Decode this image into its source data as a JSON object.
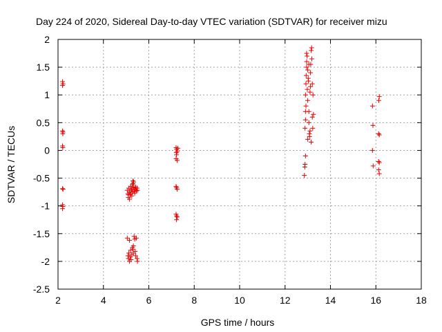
{
  "chart_data": {
    "type": "scatter",
    "title": "Day 224 of 2020, Sidereal Day-to-day VTEC variation (SDTVAR) for receiver mizu",
    "xlabel": "GPS time / hours",
    "ylabel": "SDTVAR / TECUs",
    "xlim": [
      2,
      18
    ],
    "ylim": [
      -2.5,
      2
    ],
    "x_ticks": [
      2,
      4,
      6,
      8,
      10,
      12,
      14,
      16,
      18
    ],
    "x_tick_labels": [
      "2",
      "4",
      "6",
      "8",
      "10",
      "12",
      "14",
      "16",
      "18"
    ],
    "y_ticks": [
      -2.5,
      -2,
      -1.5,
      -1,
      -0.5,
      0,
      0.5,
      1,
      1.5,
      2
    ],
    "y_tick_labels": [
      "-2.5",
      "-2",
      "-1.5",
      "-1",
      "-0.5",
      "0",
      "0.5",
      "1",
      "1.5",
      "2"
    ],
    "grid": true,
    "marker": "+",
    "marker_color": "#ee0000",
    "series": [
      {
        "name": "SDTVAR",
        "points": [
          [
            2.2,
            1.24
          ],
          [
            2.22,
            1.2
          ],
          [
            2.2,
            1.17
          ],
          [
            2.2,
            0.35
          ],
          [
            2.22,
            0.33
          ],
          [
            2.21,
            0.3
          ],
          [
            2.2,
            0.08
          ],
          [
            2.21,
            0.05
          ],
          [
            2.2,
            -0.69
          ],
          [
            2.22,
            -0.7
          ],
          [
            2.2,
            -0.98
          ],
          [
            2.21,
            -1.01
          ],
          [
            2.2,
            -1.05
          ],
          [
            5.05,
            -0.72
          ],
          [
            5.08,
            -0.78
          ],
          [
            5.1,
            -0.85
          ],
          [
            5.12,
            -0.68
          ],
          [
            5.15,
            -0.75
          ],
          [
            5.18,
            -0.8
          ],
          [
            5.2,
            -0.65
          ],
          [
            5.22,
            -0.72
          ],
          [
            5.25,
            -0.7
          ],
          [
            5.28,
            -0.62
          ],
          [
            5.3,
            -0.6
          ],
          [
            5.32,
            -0.67
          ],
          [
            5.35,
            -0.74
          ],
          [
            5.38,
            -0.77
          ],
          [
            5.4,
            -0.7
          ],
          [
            5.42,
            -0.66
          ],
          [
            5.45,
            -0.73
          ],
          [
            5.48,
            -0.68
          ],
          [
            5.5,
            -0.72
          ],
          [
            5.3,
            -0.55
          ],
          [
            5.33,
            -0.57
          ],
          [
            5.1,
            -0.8
          ],
          [
            5.15,
            -0.88
          ],
          [
            5.2,
            -0.78
          ],
          [
            5.25,
            -0.82
          ],
          [
            5.38,
            -0.68
          ],
          [
            5.28,
            -0.75
          ],
          [
            5.05,
            -1.58
          ],
          [
            5.08,
            -1.9
          ],
          [
            5.1,
            -1.95
          ],
          [
            5.12,
            -1.85
          ],
          [
            5.15,
            -2.0
          ],
          [
            5.18,
            -1.92
          ],
          [
            5.2,
            -1.8
          ],
          [
            5.22,
            -1.97
          ],
          [
            5.25,
            -1.88
          ],
          [
            5.28,
            -1.75
          ],
          [
            5.3,
            -1.78
          ],
          [
            5.32,
            -1.85
          ],
          [
            5.35,
            -1.55
          ],
          [
            5.38,
            -1.6
          ],
          [
            5.4,
            -1.82
          ],
          [
            5.42,
            -1.9
          ],
          [
            5.45,
            -1.58
          ],
          [
            5.48,
            -1.95
          ],
          [
            5.5,
            -2.0
          ],
          [
            5.15,
            -1.62
          ],
          [
            5.32,
            -1.72
          ],
          [
            7.2,
            0.05
          ],
          [
            7.22,
            0.02
          ],
          [
            7.25,
            -0.02
          ],
          [
            7.22,
            -0.08
          ],
          [
            7.2,
            -0.15
          ],
          [
            7.25,
            -0.18
          ],
          [
            7.28,
            0.04
          ],
          [
            7.21,
            -0.04
          ],
          [
            7.22,
            -0.67
          ],
          [
            7.25,
            -0.7
          ],
          [
            7.2,
            -0.65
          ],
          [
            7.2,
            -1.15
          ],
          [
            7.22,
            -1.18
          ],
          [
            7.25,
            -1.2
          ],
          [
            7.22,
            -1.25
          ],
          [
            12.85,
            -0.45
          ],
          [
            12.87,
            -0.3
          ],
          [
            12.88,
            -0.25
          ],
          [
            12.9,
            -0.1
          ],
          [
            12.88,
            0.4
          ],
          [
            12.9,
            0.55
          ],
          [
            12.9,
            0.7
          ],
          [
            12.92,
            0.8
          ],
          [
            12.9,
            1.0
          ],
          [
            12.92,
            1.2
          ],
          [
            12.93,
            1.35
          ],
          [
            12.95,
            1.5
          ],
          [
            12.95,
            1.6
          ],
          [
            12.97,
            1.7
          ],
          [
            12.98,
            1.1
          ],
          [
            13.0,
            0.9
          ],
          [
            13.0,
            1.45
          ],
          [
            13.02,
            1.3
          ],
          [
            13.03,
            1.25
          ],
          [
            13.05,
            1.55
          ],
          [
            13.05,
            0.5
          ],
          [
            13.07,
            0.3
          ],
          [
            13.08,
            0.25
          ],
          [
            13.1,
            0.35
          ],
          [
            13.1,
            1.05
          ],
          [
            13.12,
            1.15
          ],
          [
            13.12,
            1.4
          ],
          [
            13.13,
            1.55
          ],
          [
            13.15,
            1.8
          ],
          [
            13.17,
            1.85
          ],
          [
            13.18,
            1.65
          ],
          [
            13.2,
            1.2
          ],
          [
            13.2,
            0.6
          ],
          [
            13.22,
            0.4
          ],
          [
            13.23,
            1.0
          ],
          [
            13.15,
            0.15
          ],
          [
            13.0,
            0.2
          ],
          [
            12.95,
            1.75
          ],
          [
            13.05,
            0.7
          ],
          [
            13.25,
            0.65
          ],
          [
            15.85,
            0.8
          ],
          [
            15.87,
            0.45
          ],
          [
            15.85,
            0.0
          ],
          [
            15.88,
            -0.28
          ],
          [
            16.15,
            0.97
          ],
          [
            16.13,
            0.9
          ],
          [
            16.12,
            0.3
          ],
          [
            16.15,
            0.28
          ],
          [
            16.12,
            -0.2
          ],
          [
            16.15,
            -0.22
          ],
          [
            16.12,
            -0.35
          ],
          [
            16.15,
            -0.42
          ]
        ]
      }
    ]
  }
}
